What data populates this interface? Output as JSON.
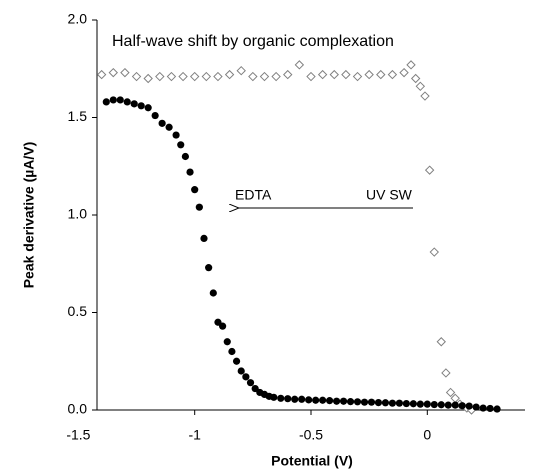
{
  "chart_data": {
    "type": "scatter",
    "title": "Half-wave shift by organic complexation",
    "x_label": "Potential (V)",
    "y_label": "Peak derivative (µA/V)",
    "annotations": [
      "EDTA",
      "UV SW"
    ],
    "xlim": [
      -1.42,
      0.42
    ],
    "xticks": [
      -1.5,
      -1,
      -0.5,
      0
    ],
    "ylim": [
      0,
      2
    ],
    "yticks": [
      {
        "value": 0,
        "label": "0.0"
      },
      0.5,
      {
        "value": 1,
        "label": "1.0"
      },
      1.5,
      {
        "value": 2,
        "label": "2.0"
      }
    ],
    "grid": false,
    "series": [
      {
        "marker": "diamond",
        "color": "#808080",
        "x": [
          -1.4,
          -1.35,
          -1.3,
          -1.25,
          -1.2,
          -1.15,
          -1.1,
          -1.05,
          -1.0,
          -0.95,
          -0.9,
          -0.85,
          -0.8,
          -0.75,
          -0.7,
          -0.65,
          -0.6,
          -0.55,
          -0.5,
          -0.45,
          -0.4,
          -0.35,
          -0.3,
          -0.25,
          -0.2,
          -0.15,
          -0.1,
          -0.07,
          -0.05,
          -0.03,
          -0.01,
          0.01,
          0.03,
          0.06,
          0.08,
          0.1,
          0.12,
          0.14,
          0.17,
          0.19
        ],
        "values": [
          1.72,
          1.73,
          1.73,
          1.71,
          1.7,
          1.71,
          1.71,
          1.71,
          1.71,
          1.71,
          1.71,
          1.72,
          1.74,
          1.71,
          1.71,
          1.71,
          1.72,
          1.77,
          1.71,
          1.72,
          1.72,
          1.72,
          1.71,
          1.72,
          1.72,
          1.72,
          1.73,
          1.77,
          1.7,
          1.66,
          1.61,
          1.23,
          0.81,
          0.35,
          0.19,
          0.09,
          0.06,
          0.03,
          0.01,
          0.0
        ]
      },
      {
        "marker": "circle",
        "color": "#000000",
        "x": [
          -1.38,
          -1.35,
          -1.32,
          -1.29,
          -1.26,
          -1.23,
          -1.2,
          -1.17,
          -1.14,
          -1.11,
          -1.08,
          -1.06,
          -1.04,
          -1.02,
          -1.0,
          -0.98,
          -0.96,
          -0.94,
          -0.92,
          -0.9,
          -0.88,
          -0.86,
          -0.84,
          -0.82,
          -0.8,
          -0.78,
          -0.76,
          -0.74,
          -0.72,
          -0.7,
          -0.68,
          -0.66,
          -0.63,
          -0.6,
          -0.57,
          -0.54,
          -0.51,
          -0.48,
          -0.45,
          -0.42,
          -0.39,
          -0.36,
          -0.33,
          -0.3,
          -0.27,
          -0.24,
          -0.21,
          -0.18,
          -0.15,
          -0.12,
          -0.09,
          -0.06,
          -0.03,
          0,
          0.03,
          0.06,
          0.09,
          0.12,
          0.15,
          0.18,
          0.21,
          0.24,
          0.27,
          0.3
        ],
        "values": [
          1.58,
          1.59,
          1.59,
          1.58,
          1.57,
          1.56,
          1.55,
          1.51,
          1.47,
          1.45,
          1.41,
          1.36,
          1.3,
          1.22,
          1.13,
          1.04,
          0.88,
          0.73,
          0.6,
          0.45,
          0.43,
          0.35,
          0.3,
          0.25,
          0.2,
          0.17,
          0.14,
          0.11,
          0.09,
          0.08,
          0.07,
          0.065,
          0.06,
          0.058,
          0.055,
          0.055,
          0.052,
          0.05,
          0.05,
          0.048,
          0.045,
          0.045,
          0.043,
          0.042,
          0.04,
          0.04,
          0.038,
          0.037,
          0.035,
          0.035,
          0.033,
          0.032,
          0.03,
          0.03,
          0.028,
          0.027,
          0.025,
          0.025,
          0.022,
          0.02,
          0.015,
          0.01,
          0.008,
          0.005
        ]
      }
    ]
  }
}
